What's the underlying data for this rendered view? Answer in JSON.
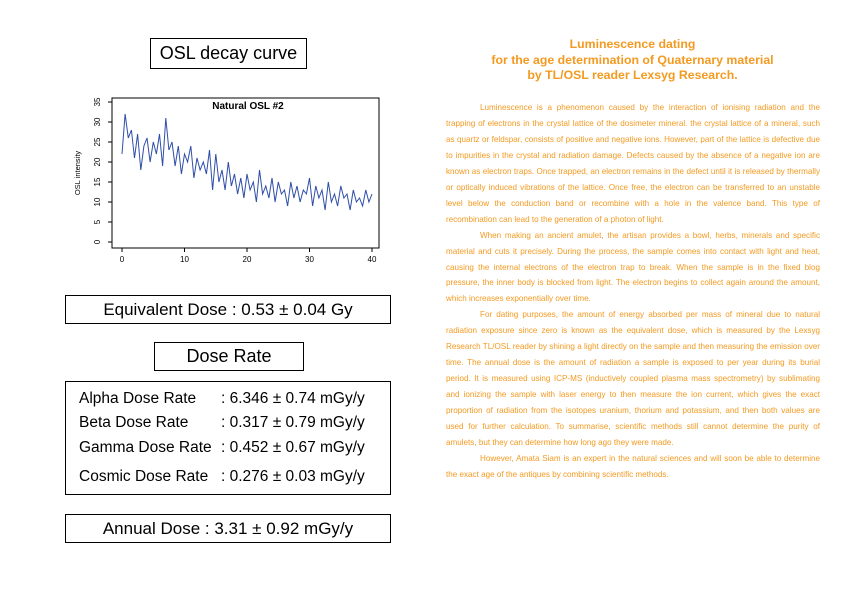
{
  "left": {
    "osl_title": "OSL decay curve",
    "equivalent_dose": "Equivalent Dose : 0.53 ± 0.04 Gy",
    "dose_rate_title": "Dose Rate",
    "dose_rates": [
      {
        "label": "Alpha Dose Rate",
        "value": ": 6.346 ± 0.74 mGy/y"
      },
      {
        "label": "Beta Dose Rate",
        "value": ": 0.317 ± 0.79 mGy/y"
      },
      {
        "label": "Gamma Dose Rate",
        "value": ": 0.452 ± 0.67 mGy/y"
      },
      {
        "label": "Cosmic Dose Rate",
        "value": ": 0.276 ± 0.03 mGy/y"
      }
    ],
    "annual_dose": "Annual Dose : 3.31 ± 0.92 mGy/y"
  },
  "chart_data": {
    "type": "line",
    "title": "Natural OSL #2",
    "xlabel": "",
    "ylabel": "OSL intensity",
    "xlim": [
      0,
      40
    ],
    "ylim": [
      0,
      35
    ],
    "xticks": [
      0,
      10,
      20,
      30,
      40
    ],
    "yticks": [
      0,
      5,
      10,
      15,
      20,
      25,
      30,
      35
    ],
    "grid": false,
    "line_color": "#2f4ea8",
    "series": [
      {
        "x": [
          0,
          0.5,
          1,
          1.5,
          2,
          2.5,
          3,
          3.5,
          4,
          4.5,
          5,
          5.5,
          6,
          6.5,
          7,
          7.5,
          8,
          8.5,
          9,
          9.5,
          10,
          10.5,
          11,
          11.5,
          12,
          12.5,
          13,
          13.5,
          14,
          14.5,
          15,
          15.5,
          16,
          16.5,
          17,
          17.5,
          18,
          18.5,
          19,
          19.5,
          20,
          20.5,
          21,
          21.5,
          22,
          22.5,
          23,
          23.5,
          24,
          24.5,
          25,
          25.5,
          26,
          26.5,
          27,
          27.5,
          28,
          28.5,
          29,
          29.5,
          30,
          30.5,
          31,
          31.5,
          32,
          32.5,
          33,
          33.5,
          34,
          34.5,
          35,
          35.5,
          36,
          36.5,
          37,
          37.5,
          38,
          38.5,
          39,
          39.5,
          40
        ],
        "values": [
          22,
          32,
          26,
          28,
          21,
          27,
          18,
          24,
          26,
          20,
          25,
          22,
          27,
          19,
          31,
          23,
          25,
          19,
          24,
          17,
          22,
          20,
          24,
          16,
          21,
          18,
          20,
          17,
          23,
          13,
          22,
          15,
          18,
          13,
          20,
          14,
          17,
          12,
          16,
          11,
          17,
          13,
          15,
          10,
          18,
          12,
          14,
          11,
          16,
          10,
          15,
          12,
          13,
          9,
          15,
          11,
          14,
          10,
          13,
          12,
          16,
          9,
          14,
          11,
          13,
          8,
          15,
          10,
          12,
          9,
          14,
          11,
          12,
          8,
          13,
          10,
          11,
          9,
          13,
          10,
          12
        ]
      }
    ]
  },
  "right": {
    "heading": [
      "Luminescence dating",
      "for the age determination of Quaternary material",
      "by TL/OSL reader Lexsyg Research."
    ],
    "paragraphs": [
      "Luminescence is a phenomenon caused by the interaction of ionising radiation and the trapping of electrons in the crystal lattice of the dosimeter mineral. the crystal lattice of a mineral, such as quartz or feldspar, consists of positive and negative ions. However, part of the lattice is defective due to impurities in the crystal and radiation damage. Defects caused by the absence of a negative ion are known as electron traps. Once trapped, an electron remains in the defect until it is released by thermally or optically induced vibrations of the lattice. Once free, the electron can be transferred to an unstable level below the conduction band or recombine with a hole in the valence band. This type of recombination can lead to the generation of a photon of light.",
      "When making an ancient amulet, the artisan provides a bowl, herbs, minerals and specific material and cuts it precisely. During the process, the sample comes into contact with light and heat, causing the internal electrons of the electron trap to break. When the sample is in the fixed blog pressure, the inner body is blocked from light. The electron begins to collect again around the amount, which increases exponentially over time.",
      "For dating purposes, the amount of energy absorbed per mass of mineral due to natural radiation exposure since zero is known as the equivalent dose, which is measured by the Lexsyg Research TL/OSL reader by shining a light directly on the sample and then measuring the emission over time. The annual dose is the amount of radiation a sample is exposed to per year during its burial period. It is measured using ICP-MS (inductively coupled plasma mass spectrometry) by sublimating and ionizing the sample with laser energy to then measure the ion current, which gives the exact proportion of radiation from the isotopes uranium, thorium and potassium, and then both values are used for further calculation. To summarise, scientific methods still cannot determine the purity of amulets, but they can determine how long ago they were made.",
      "However, Amata Siam is an expert in the natural sciences and will soon be able to determine the exact age of the antiques by combining scientific methods."
    ]
  }
}
